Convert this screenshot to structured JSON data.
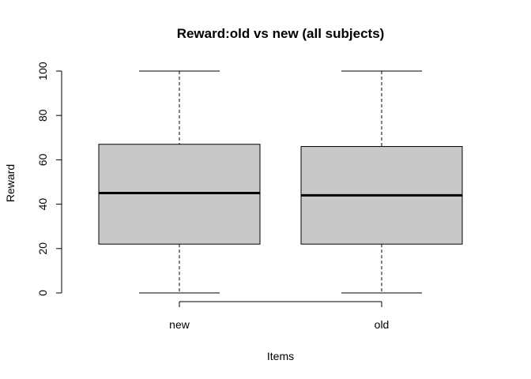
{
  "chart_data": {
    "type": "box",
    "title": "Reward:old vs new (all subjects)",
    "xlabel": "Items",
    "ylabel": "Reward",
    "categories": [
      "new",
      "old"
    ],
    "boxes": [
      {
        "name": "new",
        "min": 0,
        "q1": 22,
        "median": 45,
        "q3": 67,
        "max": 100
      },
      {
        "name": "old",
        "min": 0,
        "q1": 22,
        "median": 44,
        "q3": 66,
        "max": 100
      }
    ],
    "y_ticks": [
      0,
      20,
      40,
      60,
      80,
      100
    ],
    "ylim": [
      0,
      100
    ],
    "box_fill": "#c8c8c8",
    "line_color": "#000000",
    "grid": false,
    "legend": "none"
  }
}
